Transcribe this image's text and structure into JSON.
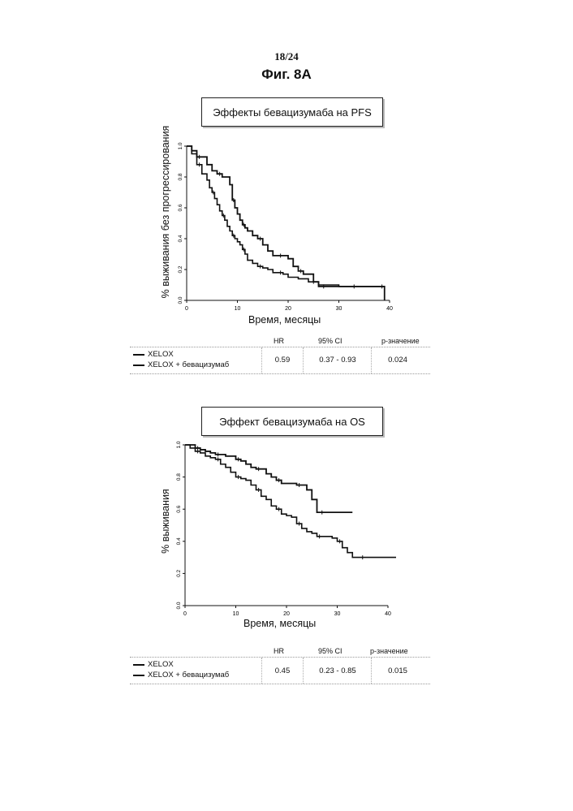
{
  "page": {
    "page_number": "18/24",
    "figure_title": "Фиг. 8А"
  },
  "table_headers": {
    "hr": "HR",
    "ci": "95% CI",
    "p": "p-значение"
  },
  "colors": {
    "line": "#111111",
    "border": "#222222"
  },
  "chart_data": [
    {
      "type": "line",
      "title": "Эффекты бевацизумаба на PFS",
      "xlabel": "Время, месяцы",
      "ylabel": "% выживания без прогрессирования",
      "xlim": [
        0,
        40
      ],
      "ylim": [
        0,
        1.0
      ],
      "xticks": [
        "0",
        "10",
        "20",
        "30",
        "40"
      ],
      "yticks": [
        "0.0",
        "0.2",
        "0.4",
        "0.6",
        "0.8",
        "1.0"
      ],
      "legend": [
        "XELOX",
        "XELOX + бевацизумаб"
      ],
      "stats": {
        "hr": "0.59",
        "ci": "0.37 - 0.93",
        "p": "0.024"
      },
      "series": [
        {
          "name": "XELOX",
          "x": [
            0,
            1,
            2,
            3,
            4,
            4.5,
            5,
            5.5,
            6,
            6.5,
            7,
            7.5,
            8,
            8.5,
            9,
            9.5,
            10,
            10.5,
            11,
            11.5,
            12,
            13,
            14,
            15,
            16,
            17,
            18,
            19,
            20,
            22,
            24,
            26,
            28,
            30,
            32,
            34,
            36,
            38,
            39
          ],
          "y": [
            1.0,
            0.95,
            0.88,
            0.82,
            0.78,
            0.73,
            0.7,
            0.66,
            0.62,
            0.58,
            0.55,
            0.52,
            0.48,
            0.45,
            0.42,
            0.4,
            0.38,
            0.36,
            0.33,
            0.3,
            0.26,
            0.24,
            0.22,
            0.21,
            0.2,
            0.18,
            0.18,
            0.17,
            0.15,
            0.14,
            0.12,
            0.1,
            0.1,
            0.09,
            0.09,
            0.09,
            0.09,
            0.09,
            0.09
          ]
        },
        {
          "name": "XELOX + бевацизумаб",
          "x": [
            0,
            1,
            2,
            3,
            4,
            5,
            6,
            7,
            8,
            8.5,
            9,
            9.5,
            10,
            10.5,
            11,
            11.5,
            12,
            13,
            14,
            15,
            16,
            17,
            18,
            19,
            20,
            21,
            22,
            23,
            24,
            25,
            26,
            28,
            30,
            34,
            38,
            39
          ],
          "y": [
            1.0,
            0.97,
            0.93,
            0.93,
            0.88,
            0.84,
            0.82,
            0.8,
            0.8,
            0.75,
            0.65,
            0.6,
            0.56,
            0.52,
            0.49,
            0.47,
            0.45,
            0.42,
            0.4,
            0.36,
            0.32,
            0.29,
            0.29,
            0.29,
            0.27,
            0.22,
            0.19,
            0.17,
            0.17,
            0.12,
            0.09,
            0.09,
            0.09,
            0.09,
            0.09,
            0.0
          ]
        }
      ]
    },
    {
      "type": "line",
      "title": "Эффект бевацизумаба на OS",
      "xlabel": "Время, месяцы",
      "ylabel": "% выживания",
      "xlim": [
        0,
        40
      ],
      "ylim": [
        0,
        1.0
      ],
      "xticks": [
        "0",
        "10",
        "20",
        "30",
        "40"
      ],
      "yticks": [
        "0.0",
        "0.2",
        "0.4",
        "0.6",
        "0.8",
        "1.0"
      ],
      "legend": [
        "XELOX",
        "XELOX + бевацизумаб"
      ],
      "stats": {
        "hr": "0.45",
        "ci": "0.23 - 0.85",
        "p": "0.015"
      },
      "series": [
        {
          "name": "XELOX",
          "x": [
            0,
            1,
            2,
            3,
            4,
            5,
            6,
            7,
            8,
            9,
            10,
            11,
            12,
            13,
            14,
            15,
            16,
            17,
            18,
            19,
            20,
            21,
            22,
            23,
            24,
            25,
            26,
            27,
            28,
            29,
            30,
            31,
            32,
            33,
            34,
            36,
            38,
            40,
            42
          ],
          "y": [
            1.0,
            0.98,
            0.96,
            0.95,
            0.93,
            0.92,
            0.91,
            0.88,
            0.86,
            0.83,
            0.8,
            0.79,
            0.78,
            0.75,
            0.72,
            0.68,
            0.66,
            0.62,
            0.6,
            0.57,
            0.56,
            0.55,
            0.51,
            0.48,
            0.46,
            0.45,
            0.43,
            0.43,
            0.43,
            0.42,
            0.4,
            0.36,
            0.33,
            0.3,
            0.3,
            0.3,
            0.3,
            0.3,
            0.3
          ]
        },
        {
          "name": "XELOX + бевацизумаб",
          "x": [
            0,
            1,
            2,
            3,
            4,
            5,
            6,
            7,
            8,
            9,
            10,
            11,
            12,
            13,
            14,
            15,
            16,
            17,
            18,
            19,
            20,
            21,
            22,
            23,
            24,
            25,
            26,
            28,
            30,
            32,
            33
          ],
          "y": [
            1.0,
            1.0,
            0.98,
            0.97,
            0.96,
            0.95,
            0.94,
            0.94,
            0.93,
            0.93,
            0.91,
            0.9,
            0.88,
            0.86,
            0.85,
            0.85,
            0.82,
            0.8,
            0.78,
            0.76,
            0.76,
            0.76,
            0.75,
            0.75,
            0.72,
            0.66,
            0.58,
            0.58,
            0.58,
            0.58,
            0.58
          ]
        }
      ]
    }
  ]
}
